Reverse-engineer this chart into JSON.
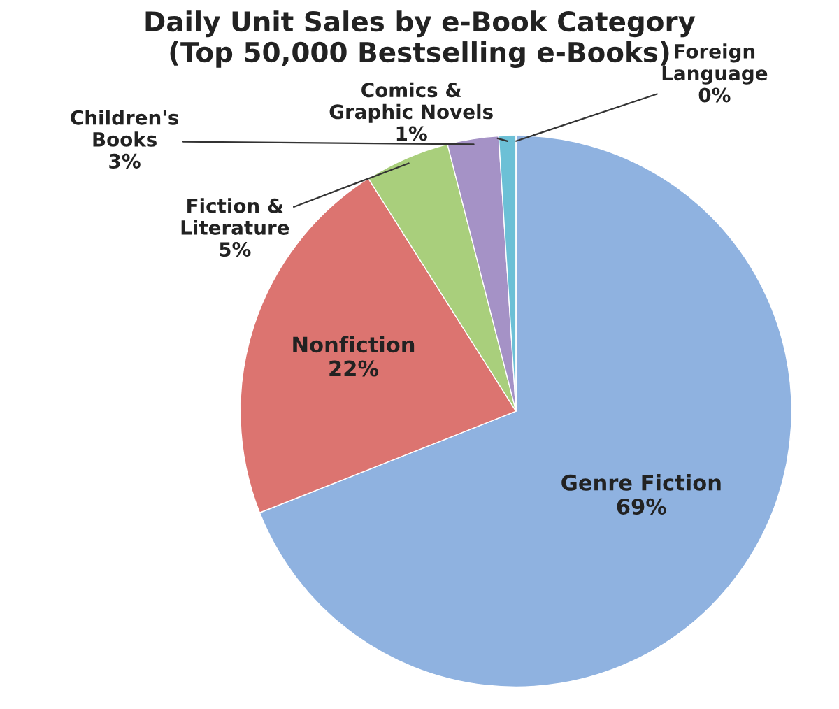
{
  "chart_data": {
    "type": "pie",
    "title": "Daily Unit Sales by e-Book Category\n(Top 50,000 Bestselling e-Books)",
    "categories": [
      "Genre Fiction",
      "Nonfiction",
      "Fiction & Literature",
      "Children's Books",
      "Comics & Graphic Novels",
      "Foreign Language"
    ],
    "values": [
      69,
      22,
      5,
      3,
      1,
      0
    ],
    "colors": [
      "#8fb2e0",
      "#dc7470",
      "#a9cf7c",
      "#a592c6",
      "#6cc0d6",
      "#f6a05a"
    ],
    "value_labels": [
      "69%",
      "22%",
      "5%",
      "3%",
      "1%",
      "0%"
    ],
    "legend": false
  }
}
